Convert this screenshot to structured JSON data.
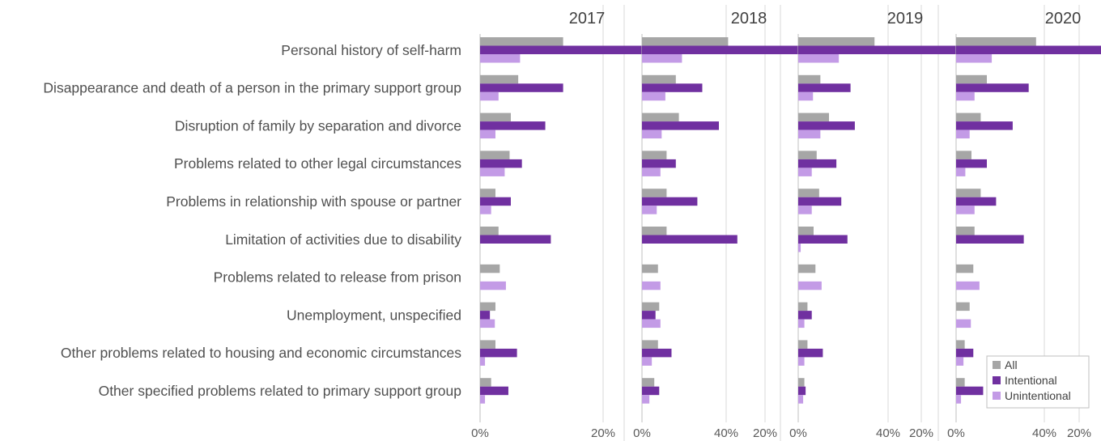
{
  "chart_data": {
    "type": "bar",
    "orientation": "horizontal",
    "facet_titles": [
      "2017",
      "2018",
      "2019",
      "2020"
    ],
    "categories": [
      "Personal history of self-harm",
      "Disappearance and death of a person in the primary support group",
      "Disruption of family by separation and divorce",
      "Problems related to other legal circumstances",
      "Problems in relationship with spouse or partner",
      "Limitation of activities due to disability",
      "Problems related to release from prison",
      "Unemployment, unspecified",
      "Other problems related to housing and economic circumstances",
      "Other specified problems related to primary support group"
    ],
    "x_ticks": [
      "0%",
      "20%",
      "40%"
    ],
    "xlim": [
      0,
      0.42
    ],
    "grid": true,
    "legend_position": "bottom-right",
    "series_names": [
      "All",
      "Intentional",
      "Unintentional"
    ],
    "colors": {
      "All": "#a6a6a6",
      "Intentional": "#7030a0",
      "Unintentional": "#c39be6"
    },
    "panels": [
      {
        "year": "2017",
        "series": [
          {
            "name": "All",
            "values": [
              0.135,
              0.062,
              0.05,
              0.048,
              0.025,
              0.03,
              0.032,
              0.025,
              0.025,
              0.018
            ]
          },
          {
            "name": "Intentional",
            "values": [
              0.338,
              0.135,
              0.106,
              0.068,
              0.05,
              0.115,
              0.0,
              0.016,
              0.06,
              0.046
            ]
          },
          {
            "name": "Unintentional",
            "values": [
              0.065,
              0.03,
              0.025,
              0.04,
              0.018,
              0.0,
              0.042,
              0.024,
              0.008,
              0.008
            ]
          }
        ]
      },
      {
        "year": "2018",
        "series": [
          {
            "name": "All",
            "values": [
              0.14,
              0.055,
              0.06,
              0.04,
              0.04,
              0.04,
              0.026,
              0.028,
              0.026,
              0.02
            ]
          },
          {
            "name": "Intentional",
            "values": [
              0.348,
              0.098,
              0.125,
              0.055,
              0.09,
              0.155,
              0.0,
              0.022,
              0.048,
              0.028
            ]
          },
          {
            "name": "Unintentional",
            "values": [
              0.065,
              0.038,
              0.032,
              0.03,
              0.024,
              0.0,
              0.03,
              0.03,
              0.016,
              0.012
            ]
          }
        ]
      },
      {
        "year": "2019",
        "series": [
          {
            "name": "All",
            "values": [
              0.124,
              0.036,
              0.05,
              0.03,
              0.034,
              0.025,
              0.028,
              0.015,
              0.015,
              0.01
            ]
          },
          {
            "name": "Intentional",
            "values": [
              0.282,
              0.085,
              0.092,
              0.062,
              0.07,
              0.08,
              0.0,
              0.022,
              0.04,
              0.012
            ]
          },
          {
            "name": "Unintentional",
            "values": [
              0.066,
              0.024,
              0.036,
              0.022,
              0.022,
              0.004,
              0.038,
              0.01,
              0.01,
              0.008
            ]
          }
        ]
      },
      {
        "year": "2020",
        "series": [
          {
            "name": "All",
            "values": [
              0.13,
              0.05,
              0.04,
              0.025,
              0.04,
              0.03,
              0.028,
              0.022,
              0.014,
              0.014
            ]
          },
          {
            "name": "Intentional",
            "values": [
              0.33,
              0.118,
              0.092,
              0.05,
              0.065,
              0.11,
              0.0,
              0.0,
              0.028,
              0.044
            ]
          },
          {
            "name": "Unintentional",
            "values": [
              0.058,
              0.03,
              0.022,
              0.015,
              0.03,
              0.0,
              0.038,
              0.024,
              0.012,
              0.008
            ]
          }
        ]
      }
    ]
  }
}
